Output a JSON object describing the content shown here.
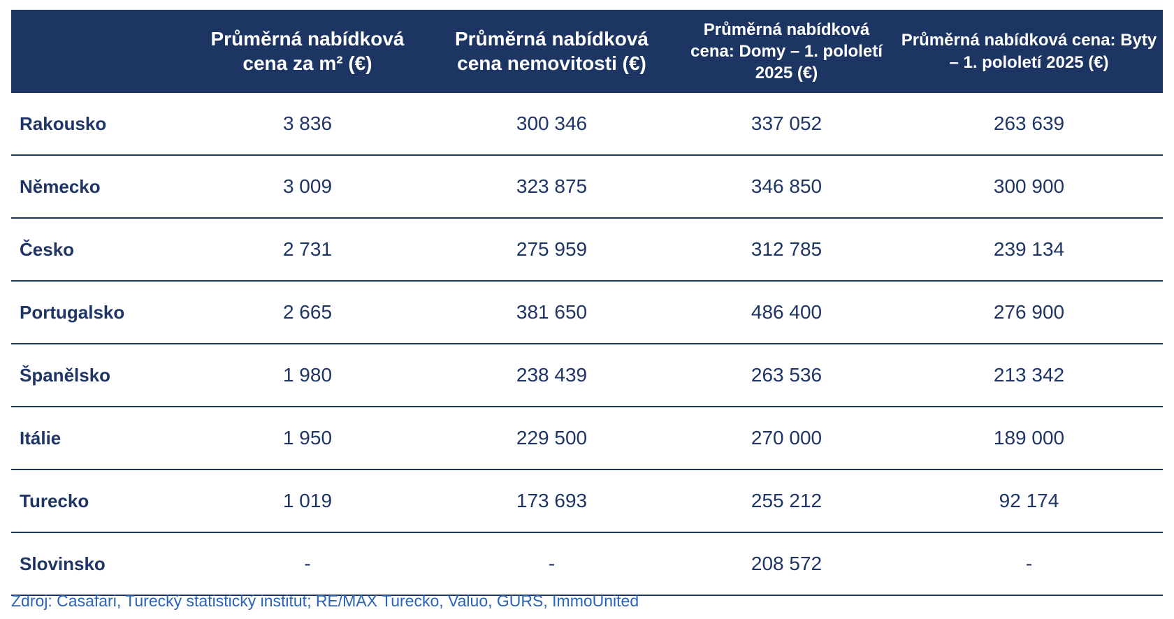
{
  "table": {
    "headers": [
      "",
      "Průměrná nabídková cena za m² (€)",
      "Průměrná nabídková cena nemovitosti (€)",
      "Průměrná nabídková cena: Domy – 1. pololetí 2025 (€)",
      "Průměrná nabídková cena: Byty – 1. pololetí 2025 (€)"
    ],
    "rows": [
      {
        "country": "Rakousko",
        "values": [
          "3 836",
          "300 346",
          "337 052",
          "263 639"
        ]
      },
      {
        "country": "Německo",
        "values": [
          "3 009",
          "323 875",
          "346 850",
          "300 900"
        ]
      },
      {
        "country": "Česko",
        "values": [
          "2 731",
          "275 959",
          "312 785",
          "239 134"
        ]
      },
      {
        "country": "Portugalsko",
        "values": [
          "2 665",
          "381 650",
          "486 400",
          "276 900"
        ]
      },
      {
        "country": "Španělsko",
        "values": [
          "1 980",
          "238 439",
          "263 536",
          "213 342"
        ]
      },
      {
        "country": "Itálie",
        "values": [
          "1 950",
          "229 500",
          "270 000",
          "189 000"
        ]
      },
      {
        "country": "Turecko",
        "values": [
          "1 019",
          "173 693",
          "255 212",
          "92 174"
        ]
      },
      {
        "country": "Slovinsko",
        "values": [
          "-",
          "-",
          "208 572",
          "-"
        ]
      }
    ]
  },
  "source": "Zdroj: Casafari, Turecký statistický institut; RE/MAX Turecko, Valuo, GURS, ImmoUnited",
  "colors": {
    "header_bg": "#1c3563",
    "text": "#1f3565",
    "source_text": "#2a63b8"
  }
}
